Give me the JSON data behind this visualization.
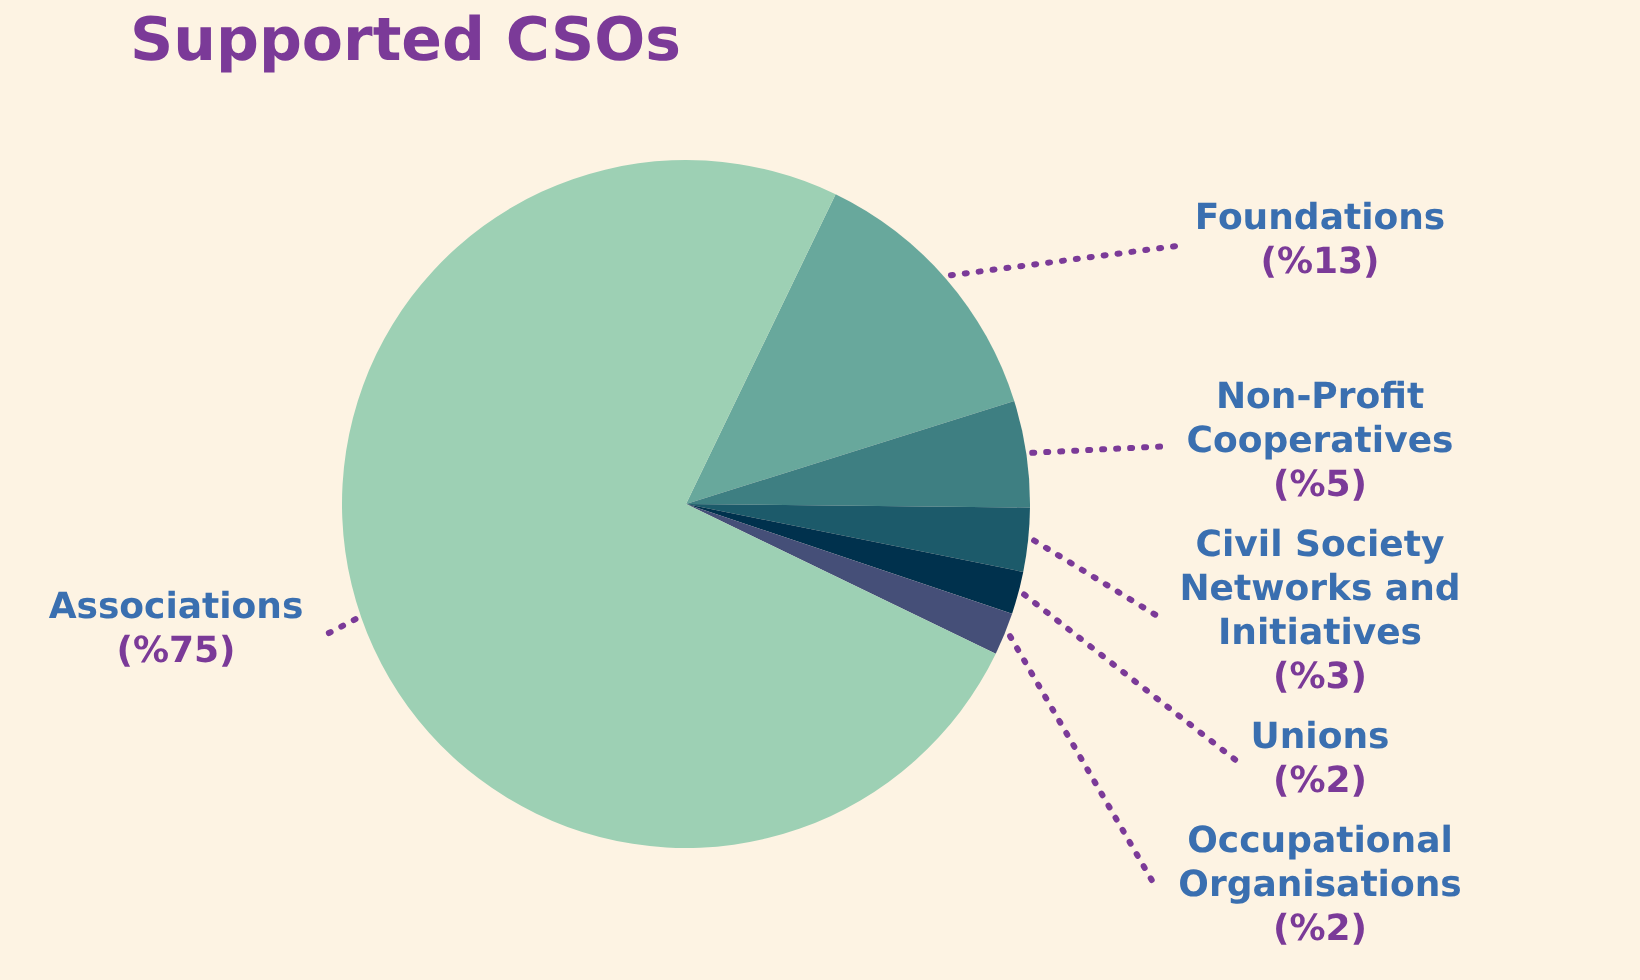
{
  "chart_data": {
    "type": "pie",
    "title": "Supported CSOs",
    "categories": [
      "Foundations",
      "Non-Profit\nCooperatives",
      "Civil Society\nNetworks and\nInitiatives",
      "Unions",
      "Occupational\nOrganisations",
      "Associations"
    ],
    "values": [
      13,
      5,
      3,
      2,
      2,
      75
    ],
    "value_labels": [
      "(%13)",
      "(%5)",
      "(%3)",
      "(%2)",
      "(%2)",
      "(%75)"
    ],
    "colors": [
      "#68a89c",
      "#3e7f82",
      "#1c5a6a",
      "#00314d",
      "#454f78",
      "#9dd0b4"
    ],
    "legend": false
  }
}
